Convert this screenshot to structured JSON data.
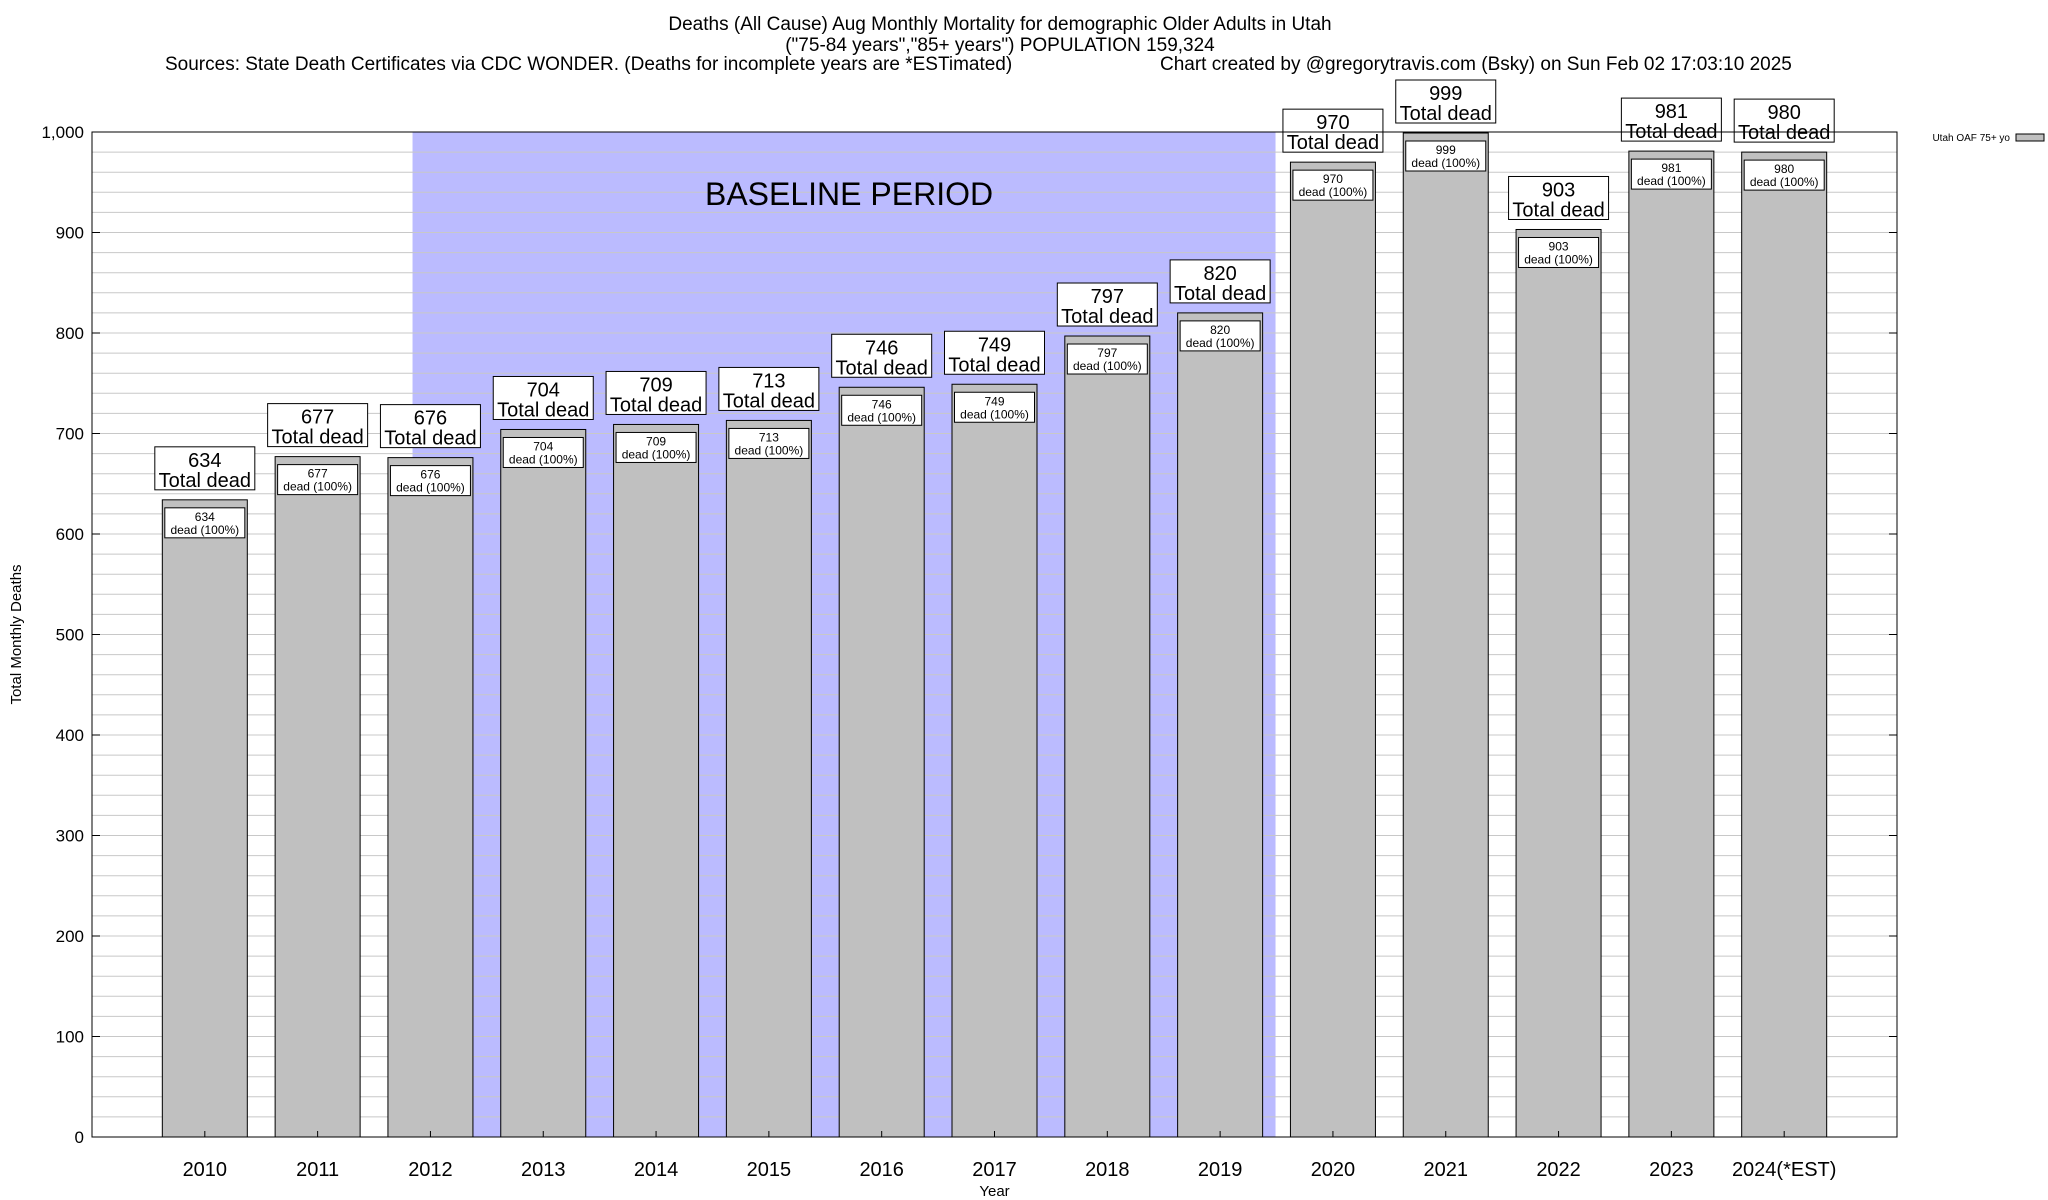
{
  "header": {
    "title_line1": "Deaths (All Cause) Aug Monthly Mortality for demographic Older Adults in Utah",
    "title_line2": "(\"75-84 years\",\"85+ years\") POPULATION 159,324",
    "sources": "Sources: State Death Certificates via CDC WONDER. (Deaths for incomplete years are *ESTimated)",
    "credit": "Chart created by @gregorytravis.com (Bsky) on Sun Feb 02 17:03:10 2025"
  },
  "colors": {
    "bar_fill": "#c0c0c0",
    "baseline_fill": "#bbbbff",
    "grid": "#c8c8c8"
  },
  "chart_data": {
    "type": "bar",
    "title": "Deaths (All Cause) Aug Monthly Mortality for demographic Older Adults in Utah",
    "xlabel": "Year",
    "ylabel": "Total Monthly Deaths",
    "ylim": [
      0,
      1000
    ],
    "yticks": [
      0,
      100,
      200,
      300,
      400,
      500,
      600,
      700,
      800,
      900,
      1000
    ],
    "ytick_labels": [
      "0",
      "100",
      "200",
      "300",
      "400",
      "500",
      "600",
      "700",
      "800",
      "900",
      "1,000"
    ],
    "categories": [
      "2010",
      "2011",
      "2012",
      "2013",
      "2014",
      "2015",
      "2016",
      "2017",
      "2018",
      "2019",
      "2020",
      "2021",
      "2022",
      "2023",
      "2024(*EST)"
    ],
    "values": [
      634,
      677,
      676,
      704,
      709,
      713,
      746,
      749,
      797,
      820,
      970,
      999,
      903,
      981,
      980
    ],
    "total_label_suffix": "Total dead",
    "inner_label_suffix": "dead (100%)",
    "legend": {
      "label": "Utah OAF 75+ yo",
      "position": "top-right"
    },
    "baseline": {
      "label": "BASELINE PERIOD",
      "from": "2012",
      "to": "2019"
    }
  }
}
